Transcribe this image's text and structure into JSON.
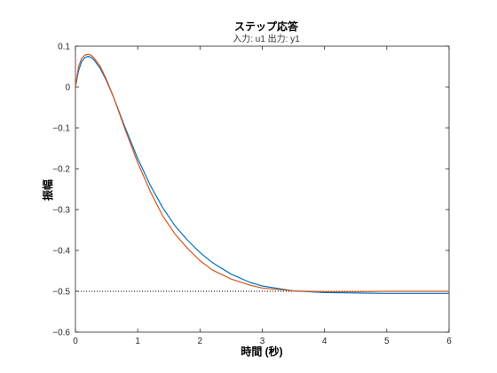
{
  "chart_data": {
    "type": "line",
    "title": "ステップ応答",
    "subtitle": "入力: u1  出力: y1",
    "xlabel": "時間 (秒)",
    "ylabel": "振幅",
    "xlim": [
      0,
      6
    ],
    "ylim": [
      -0.6,
      0.1
    ],
    "xticks": [
      0,
      1,
      2,
      3,
      4,
      5,
      6
    ],
    "yticks": [
      0.1,
      0,
      -0.1,
      -0.2,
      -0.3,
      -0.4,
      -0.5,
      -0.6
    ],
    "ytick_labels": [
      "0.1",
      "0",
      "−0.1",
      "−0.2",
      "−0.3",
      "−0.4",
      "−0.5",
      "−0.6"
    ],
    "grid": false,
    "steady_state": -0.5,
    "series": [
      {
        "color": "#0072bd",
        "x": [
          0,
          0.05,
          0.1,
          0.15,
          0.2,
          0.25,
          0.3,
          0.4,
          0.5,
          0.6,
          0.7,
          0.8,
          1.0,
          1.2,
          1.4,
          1.6,
          1.8,
          2.0,
          2.2,
          2.5,
          2.8,
          3.0,
          3.5,
          4.0,
          4.5,
          5.0,
          5.5,
          6.0
        ],
        "y": [
          0.0,
          0.04,
          0.062,
          0.072,
          0.075,
          0.073,
          0.066,
          0.045,
          0.015,
          -0.02,
          -0.06,
          -0.1,
          -0.175,
          -0.24,
          -0.295,
          -0.34,
          -0.375,
          -0.405,
          -0.43,
          -0.458,
          -0.478,
          -0.487,
          -0.499,
          -0.503,
          -0.504,
          -0.505,
          -0.505,
          -0.505
        ]
      },
      {
        "color": "#d95319",
        "x": [
          0,
          0.05,
          0.1,
          0.15,
          0.2,
          0.25,
          0.3,
          0.4,
          0.5,
          0.6,
          0.7,
          0.8,
          1.0,
          1.2,
          1.4,
          1.6,
          1.8,
          2.0,
          2.2,
          2.5,
          2.8,
          3.0,
          3.5,
          4.0,
          4.5,
          5.0,
          5.5,
          6.0
        ],
        "y": [
          0.0,
          0.05,
          0.07,
          0.078,
          0.08,
          0.078,
          0.071,
          0.05,
          0.018,
          -0.02,
          -0.062,
          -0.105,
          -0.185,
          -0.255,
          -0.315,
          -0.36,
          -0.395,
          -0.425,
          -0.448,
          -0.47,
          -0.485,
          -0.492,
          -0.499,
          -0.501,
          -0.501,
          -0.5,
          -0.5,
          -0.5
        ]
      }
    ]
  }
}
